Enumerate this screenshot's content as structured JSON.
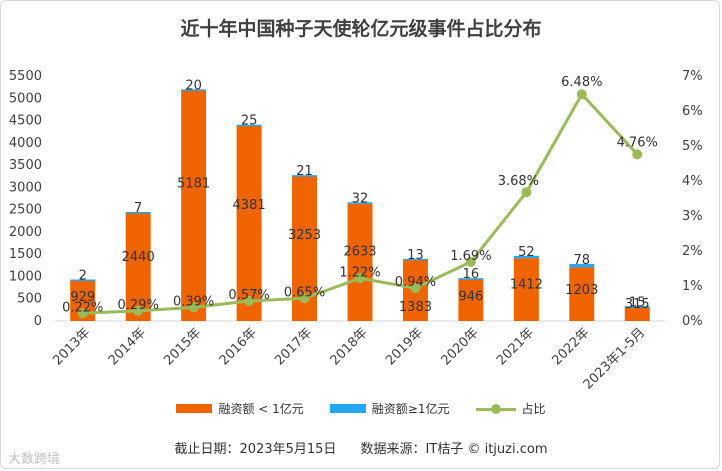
{
  "header": {
    "title": "近十年中国种子天使轮亿元级事件占比分布"
  },
  "footer": {
    "cutoff": "截止日期：2023年5月15日",
    "source": "数据来源：IT桔子 © itjuzi.com"
  },
  "corner_mark": {
    "text": "大数跨境"
  },
  "colors": {
    "small": "#f06400",
    "large": "#22a7f0",
    "ratio": "#9bbb59",
    "axis": "#d9d9d9",
    "text": "#404040"
  },
  "chart_data": {
    "type": "bar",
    "title": "近十年中国种子天使轮亿元级事件占比分布",
    "categories": [
      "2013年",
      "2014年",
      "2015年",
      "2016年",
      "2017年",
      "2018年",
      "2019年",
      "2020年",
      "2021年",
      "2022年",
      "2023年1-5月"
    ],
    "series": [
      {
        "name": "融资额 < 1亿元",
        "type": "bar",
        "axis": "left",
        "stack": true,
        "values": [
          929,
          2440,
          5181,
          4381,
          3253,
          2633,
          1383,
          946,
          1412,
          1203,
          315
        ]
      },
      {
        "name": "融资额≥1亿元",
        "type": "bar",
        "axis": "left",
        "stack": true,
        "values": [
          2,
          7,
          20,
          25,
          21,
          32,
          13,
          16,
          52,
          78,
          15
        ]
      },
      {
        "name": "占比",
        "type": "line",
        "axis": "right",
        "values": [
          0.22,
          0.29,
          0.39,
          0.57,
          0.65,
          1.22,
          0.94,
          1.69,
          3.68,
          6.48,
          4.76
        ],
        "labels": [
          "0.22%",
          "0.29%",
          "0.39%",
          "0.57%",
          "0.65%",
          "1.22%",
          "0.94%",
          "1.69%",
          "3.68%",
          "6.48%",
          "4.76%"
        ]
      }
    ],
    "ylim": [
      0,
      5500
    ],
    "yticks": [
      "0",
      "500",
      "1000",
      "1500",
      "2000",
      "2500",
      "3000",
      "3500",
      "4000",
      "4500",
      "5000",
      "5500"
    ],
    "y2lim": [
      0,
      7
    ],
    "y2ticks": [
      "0%",
      "1%",
      "2%",
      "3%",
      "4%",
      "5%",
      "6%",
      "7%"
    ],
    "grid": false,
    "legend": "bottom"
  }
}
